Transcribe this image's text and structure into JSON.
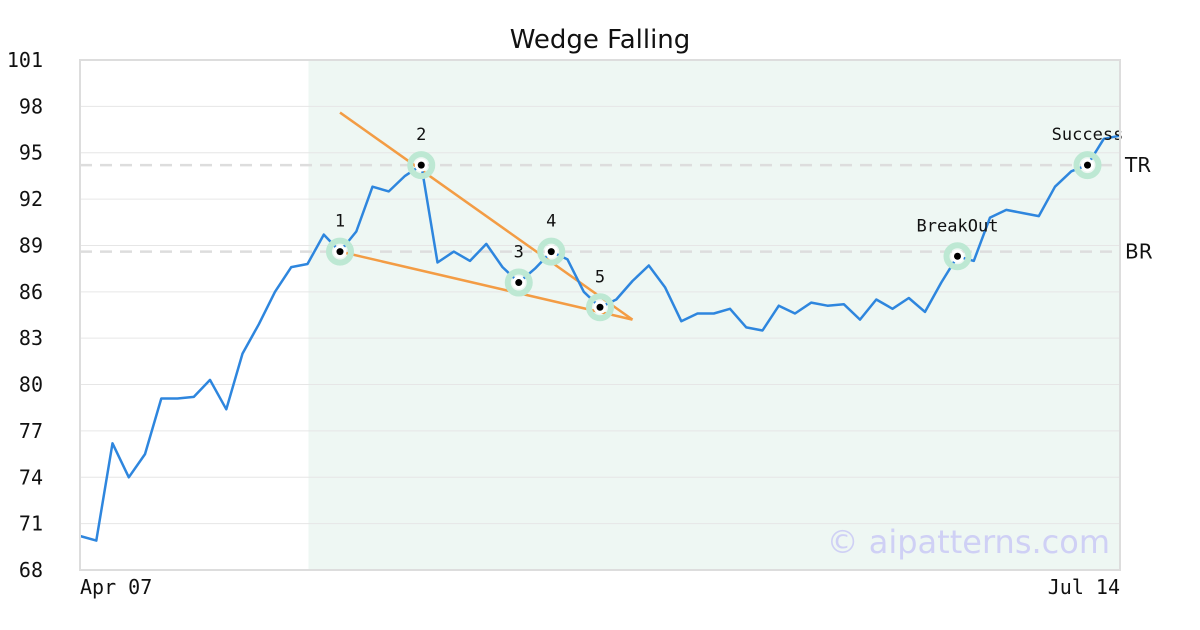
{
  "chart_data": {
    "type": "line",
    "title": "Wedge Falling",
    "xlabel": "",
    "ylabel": "",
    "ylim": [
      68,
      101
    ],
    "y_ticks": [
      68,
      71,
      74,
      77,
      80,
      83,
      86,
      89,
      92,
      95,
      98,
      101
    ],
    "x_tick_labels": [
      "Apr 07",
      "Jul 14"
    ],
    "grid": "horizontal",
    "series": [
      {
        "color": "#2e86de",
        "values": [
          70.2,
          69.9,
          76.2,
          74.0,
          75.5,
          79.1,
          79.1,
          79.2,
          80.3,
          78.4,
          82.0,
          83.9,
          86.0,
          87.6,
          87.8,
          89.7,
          88.6,
          89.9,
          92.8,
          92.5,
          93.5,
          94.2,
          87.9,
          88.6,
          88.0,
          89.1,
          87.6,
          86.6,
          87.5,
          88.6,
          88.1,
          86.0,
          85.0,
          85.5,
          86.7,
          87.7,
          86.3,
          84.1,
          84.6,
          84.6,
          84.9,
          83.7,
          83.5,
          85.1,
          84.6,
          85.3,
          85.1,
          85.2,
          84.2,
          85.5,
          84.9,
          85.6,
          84.7,
          86.6,
          88.3,
          88.0,
          90.8,
          91.3,
          91.1,
          90.9,
          92.8,
          93.8,
          94.2,
          95.9,
          96.1
        ]
      }
    ],
    "highlight_range": [
      14,
      64
    ],
    "trendlines": [
      {
        "color": "#f39c44",
        "from": [
          16,
          97.6
        ],
        "to": [
          34,
          84.2
        ]
      },
      {
        "color": "#f39c44",
        "from": [
          16,
          88.6
        ],
        "to": [
          34,
          84.2
        ]
      }
    ],
    "levels": [
      {
        "label": "TR",
        "y": 94.2
      },
      {
        "label": "BR",
        "y": 88.6
      }
    ],
    "points": [
      {
        "label": "1",
        "x": 16,
        "y": 88.6
      },
      {
        "label": "2",
        "x": 21,
        "y": 94.2
      },
      {
        "label": "3",
        "x": 27,
        "y": 86.6
      },
      {
        "label": "4",
        "x": 29,
        "y": 88.6
      },
      {
        "label": "5",
        "x": 32,
        "y": 85.0
      },
      {
        "label": "BreakOut",
        "x": 54,
        "y": 88.3
      },
      {
        "label": "Success",
        "x": 62,
        "y": 94.2
      }
    ],
    "watermark": "© aipatterns.com"
  }
}
